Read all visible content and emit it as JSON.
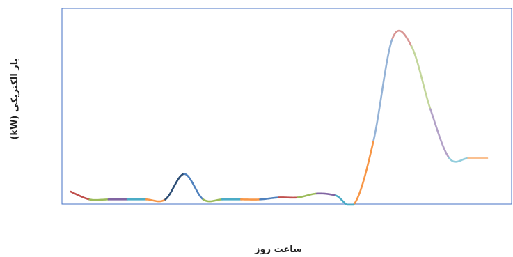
{
  "chart_data": {
    "type": "line",
    "title": "",
    "xlabel": "ساعت روز",
    "ylabel": "بار الکتریکی (kW)",
    "x_tick_labels": [],
    "y_tick_labels": [],
    "grid": false,
    "legend": "none",
    "xlim": [
      0,
      24
    ],
    "ylim": [
      0,
      100
    ],
    "frame_color": "#4472C4",
    "series": [
      {
        "x": [
          0,
          1,
          2,
          3,
          4,
          5,
          6,
          7,
          8,
          9,
          10,
          11,
          12,
          13,
          14,
          15,
          16,
          17,
          18,
          19,
          20,
          21,
          22,
          23,
          24
        ],
        "values": [
          6,
          2,
          2,
          2,
          2,
          2,
          15,
          2,
          2,
          2,
          2,
          3,
          3,
          5,
          4,
          0,
          32,
          84,
          80,
          48,
          23,
          23,
          23,
          23,
          23
        ],
        "segment_colors": [
          "#C0504D",
          "#9BBB59",
          "#8064A2",
          "#4BACC6",
          "#F79646",
          "#2C4D75",
          "#4F81BD",
          "#9BBB59",
          "#4BACC6",
          "#F79646",
          "#4F81BD",
          "#C0504D",
          "#9BBB59",
          "#8064A2",
          "#4BACC6",
          "#F79646",
          "#95B3D7",
          "#D99694",
          "#C3D69B",
          "#B2A1C7",
          "#92CDDC",
          "#FAC090"
        ],
        "visible_points": 23,
        "end_value": 23
      }
    ]
  }
}
